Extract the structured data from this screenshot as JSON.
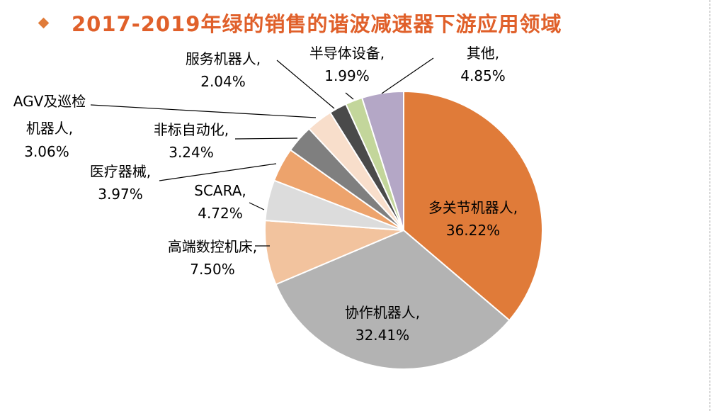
{
  "title": "2017-2019年绿的销售的谐波减速器下游应用领域",
  "chart_data": {
    "type": "pie",
    "slices": [
      {
        "label": "多关节机器人",
        "value": 36.22,
        "value_text": "36.22%",
        "color": "#E07B39"
      },
      {
        "label": "协作机器人",
        "value": 32.41,
        "value_text": "32.41%",
        "color": "#B3B3B3"
      },
      {
        "label": "高端数控机床",
        "value": 7.5,
        "value_text": "7.50%",
        "color": "#F2C39E"
      },
      {
        "label": "SCARA",
        "value": 4.72,
        "value_text": "4.72%",
        "color": "#DCDCDC"
      },
      {
        "label": "医疗器械",
        "value": 3.97,
        "value_text": "3.97%",
        "color": "#EDA36C"
      },
      {
        "label": "非标自动化",
        "value": 3.24,
        "value_text": "3.24%",
        "color": "#7F7F7F"
      },
      {
        "label": "AGV及巡检机器人",
        "label_lines": [
          "AGV及巡检",
          "机器人,"
        ],
        "value": 3.06,
        "value_text": "3.06%",
        "color": "#F8DECB"
      },
      {
        "label": "服务机器人",
        "value": 2.04,
        "value_text": "2.04%",
        "color": "#4A4A4A"
      },
      {
        "label": "半导体设备",
        "value": 1.99,
        "value_text": "1.99%",
        "color": "#C3D69B"
      },
      {
        "label": "其他",
        "value": 4.85,
        "value_text": "4.85%",
        "color": "#B4A7C6"
      }
    ]
  }
}
